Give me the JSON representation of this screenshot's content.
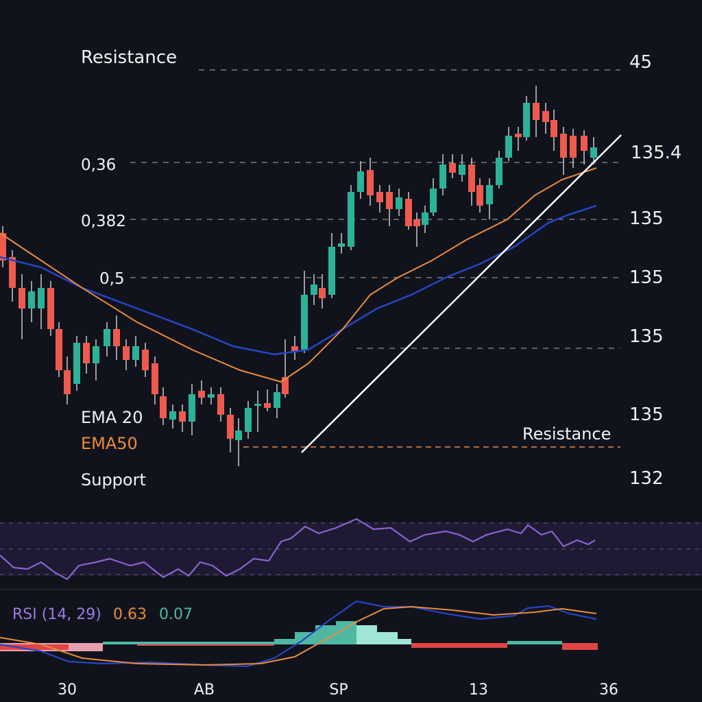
{
  "levels": {
    "top_resistance": "Resistance",
    "top_price": "45",
    "fib_036": "0,36",
    "price_1354": "135.4",
    "fib_0382": "0,382",
    "price_135_a": "135",
    "fib_05": "0,5",
    "price_135_b": "135",
    "price_135_c": "135",
    "price_135_d": "135",
    "resistance_low": "Resistance",
    "support": "Support",
    "price_132": "132"
  },
  "legend": {
    "ema20": "EMA 20",
    "ema50": "EMA50"
  },
  "rsi": {
    "label": "RSI (14, 29)",
    "value_a": "0.63",
    "value_b": "0.07"
  },
  "x_axis": [
    "30",
    "AB",
    "SP",
    "13",
    "36"
  ]
}
